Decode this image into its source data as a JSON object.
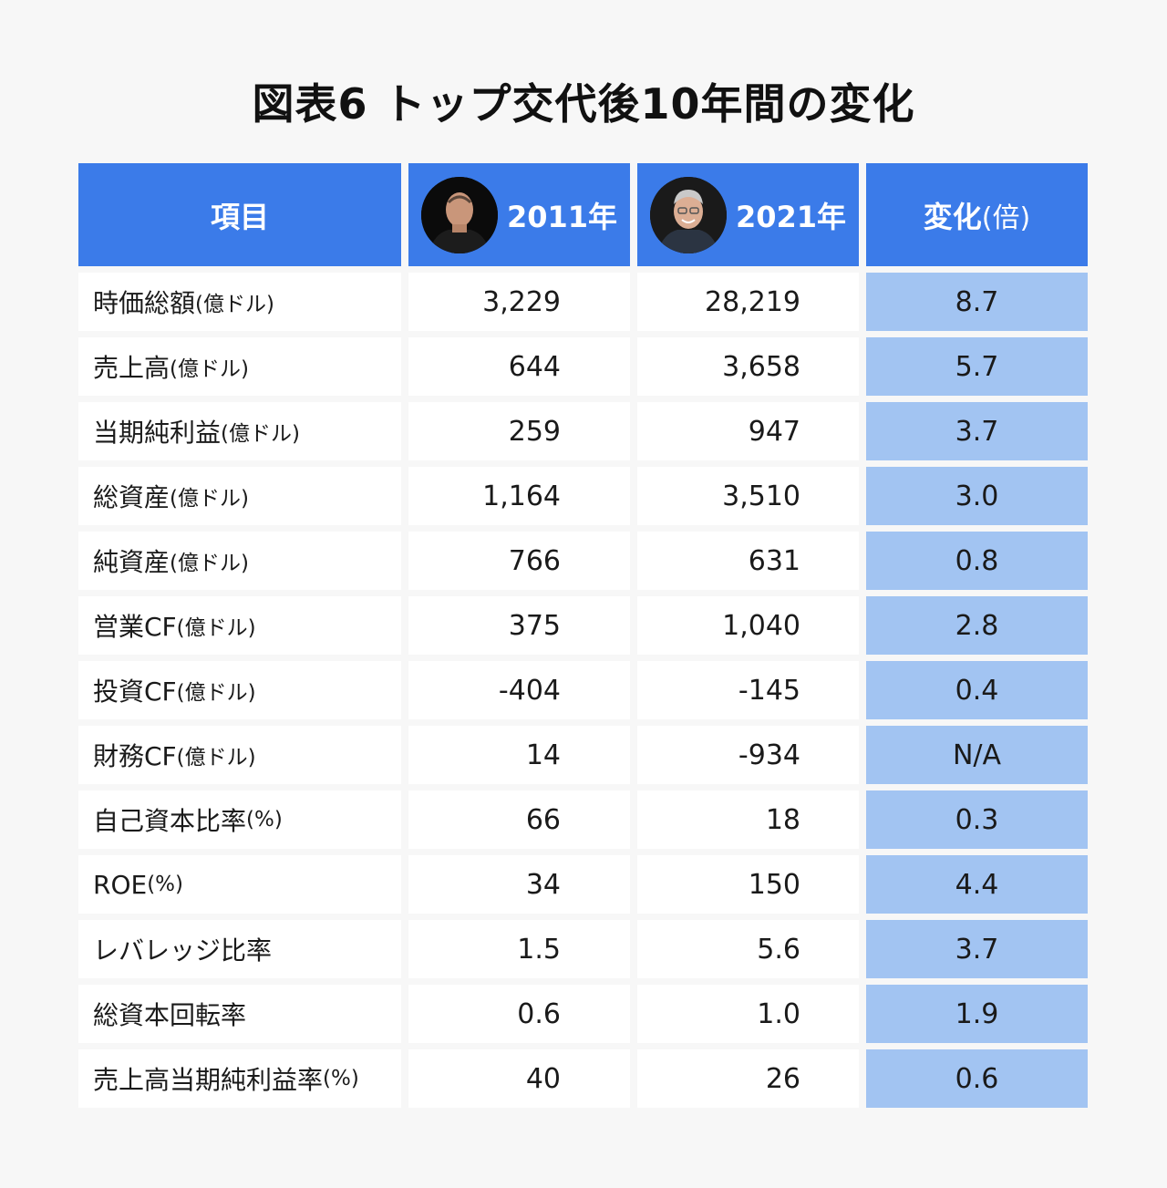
{
  "title": "図表6 トップ交代後10年間の変化",
  "header": {
    "item": "項目",
    "year1": "2011年",
    "year2": "2021年",
    "change_main": "変化",
    "change_unit": "(倍)"
  },
  "rows": [
    {
      "label": "時価総額",
      "unit": "(億ドル)",
      "v2011": "3,229",
      "v2021": "28,219",
      "change": "8.7"
    },
    {
      "label": "売上高",
      "unit": "(億ドル)",
      "v2011": "644",
      "v2021": "3,658",
      "change": "5.7"
    },
    {
      "label": "当期純利益",
      "unit": "(億ドル)",
      "v2011": "259",
      "v2021": "947",
      "change": "3.7"
    },
    {
      "label": "総資産",
      "unit": "(億ドル)",
      "v2011": "1,164",
      "v2021": "3,510",
      "change": "3.0"
    },
    {
      "label": "純資産",
      "unit": "(億ドル)",
      "v2011": "766",
      "v2021": "631",
      "change": "0.8"
    },
    {
      "label": "営業CF",
      "unit": "(億ドル)",
      "v2011": "375",
      "v2021": "1,040",
      "change": "2.8"
    },
    {
      "label": "投資CF",
      "unit": "(億ドル)",
      "v2011": "-404",
      "v2021": "-145",
      "change": "0.4"
    },
    {
      "label": "財務CF",
      "unit": "(億ドル)",
      "v2011": "14",
      "v2021": "-934",
      "change": "N/A"
    },
    {
      "label": "自己資本比率",
      "unit": "(%)",
      "v2011": "66",
      "v2021": "18",
      "change": "0.3"
    },
    {
      "label": "ROE",
      "unit": "(%)",
      "v2011": "34",
      "v2021": "150",
      "change": "4.4"
    },
    {
      "label": "レバレッジ比率",
      "unit": "",
      "v2011": "1.5",
      "v2021": "5.6",
      "change": "3.7"
    },
    {
      "label": "総資本回転率",
      "unit": "",
      "v2011": "0.6",
      "v2021": "1.0",
      "change": "1.9"
    },
    {
      "label": "売上高当期純利益率",
      "unit": "(%)",
      "v2011": "40",
      "v2021": "26",
      "change": "0.6"
    }
  ]
}
